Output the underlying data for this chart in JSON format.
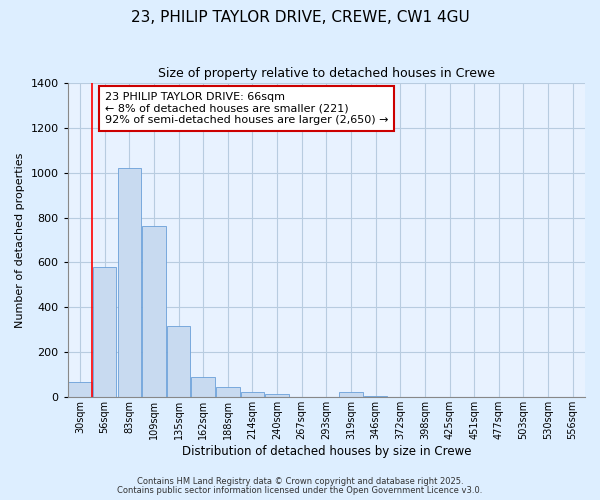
{
  "title1": "23, PHILIP TAYLOR DRIVE, CREWE, CW1 4GU",
  "title2": "Size of property relative to detached houses in Crewe",
  "xlabel": "Distribution of detached houses by size in Crewe",
  "ylabel": "Number of detached properties",
  "categories": [
    "30sqm",
    "56sqm",
    "83sqm",
    "109sqm",
    "135sqm",
    "162sqm",
    "188sqm",
    "214sqm",
    "240sqm",
    "267sqm",
    "293sqm",
    "319sqm",
    "346sqm",
    "372sqm",
    "398sqm",
    "425sqm",
    "451sqm",
    "477sqm",
    "503sqm",
    "530sqm",
    "556sqm"
  ],
  "values": [
    65,
    580,
    1020,
    760,
    318,
    88,
    42,
    22,
    12,
    0,
    0,
    20,
    5,
    0,
    0,
    0,
    0,
    0,
    0,
    0,
    0
  ],
  "bar_color": "#c8daf0",
  "bar_edge_color": "#6a9fd8",
  "annotation_text": "23 PHILIP TAYLOR DRIVE: 66sqm\n← 8% of detached houses are smaller (221)\n92% of semi-detached houses are larger (2,650) →",
  "annotation_box_color": "#ffffff",
  "annotation_box_edge_color": "#cc0000",
  "background_color": "#ddeeff",
  "plot_bg_color": "#e8f2ff",
  "grid_color": "#b8cce0",
  "ylim": [
    0,
    1400
  ],
  "yticks": [
    0,
    200,
    400,
    600,
    800,
    1000,
    1200,
    1400
  ],
  "footer_text1": "Contains HM Land Registry data © Crown copyright and database right 2025.",
  "footer_text2": "Contains public sector information licensed under the Open Government Licence v3.0."
}
